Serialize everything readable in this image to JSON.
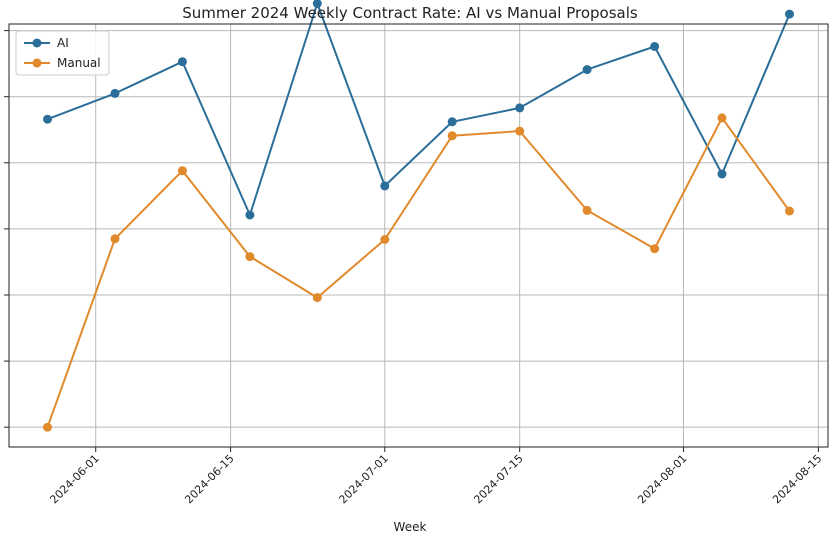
{
  "chart_data": {
    "type": "line",
    "title": "Summer 2024 Weekly Contract Rate: AI vs Manual Proposals",
    "xlabel": "Week",
    "ylabel": "",
    "x": [
      "2024-05-27",
      "2024-06-03",
      "2024-06-10",
      "2024-06-17",
      "2024-06-24",
      "2024-07-01",
      "2024-07-08",
      "2024-07-15",
      "2024-07-22",
      "2024-07-29",
      "2024-08-05",
      "2024-08-12"
    ],
    "x_ticks": [
      "2024-06-01",
      "2024-06-15",
      "2024-07-01",
      "2024-07-15",
      "2024-08-01",
      "2024-08-15"
    ],
    "xlim": [
      "2024-05-23",
      "2024-08-16"
    ],
    "ylim": [
      0.4,
      6.8
    ],
    "y_ticks": [
      0.7,
      1.7,
      2.7,
      3.7,
      4.7,
      5.7,
      6.7
    ],
    "series": [
      {
        "name": "AI",
        "color": "#2b6e99",
        "values": [
          5.36,
          5.75,
          6.23,
          3.91,
          7.11,
          4.35,
          5.32,
          5.53,
          6.11,
          6.46,
          4.53,
          6.95
        ]
      },
      {
        "name": "Manual",
        "color": "#e08a2c",
        "values": [
          0.7,
          3.55,
          4.58,
          3.28,
          2.66,
          3.54,
          5.11,
          5.18,
          3.98,
          3.4,
          5.38,
          3.97
        ]
      }
    ],
    "grid": true,
    "legend_position": "top-left"
  }
}
